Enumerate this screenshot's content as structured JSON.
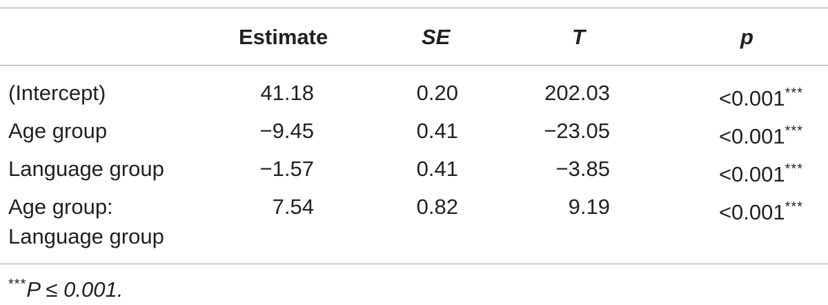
{
  "table": {
    "headers": {
      "estimate": "Estimate",
      "se": "SE",
      "t": "T",
      "p": "p"
    },
    "rows": [
      {
        "label": "(Intercept)",
        "estimate": "41.18",
        "se": "0.20",
        "t": "202.03",
        "p": "<0.001",
        "sig": "***"
      },
      {
        "label": "Age group",
        "estimate": "−9.45",
        "se": "0.41",
        "t": "−23.05",
        "p": "<0.001",
        "sig": "***"
      },
      {
        "label": "Language group",
        "estimate": "−1.57",
        "se": "0.41",
        "t": "−3.85",
        "p": "<0.001",
        "sig": "***"
      },
      {
        "label": "Age group:",
        "label_line2": "Language group",
        "estimate": "7.54",
        "se": "0.82",
        "t": "9.19",
        "p": "<0.001",
        "sig": "***"
      }
    ]
  },
  "footnote": {
    "stars": "***",
    "text": "P ≤ 0.001."
  }
}
